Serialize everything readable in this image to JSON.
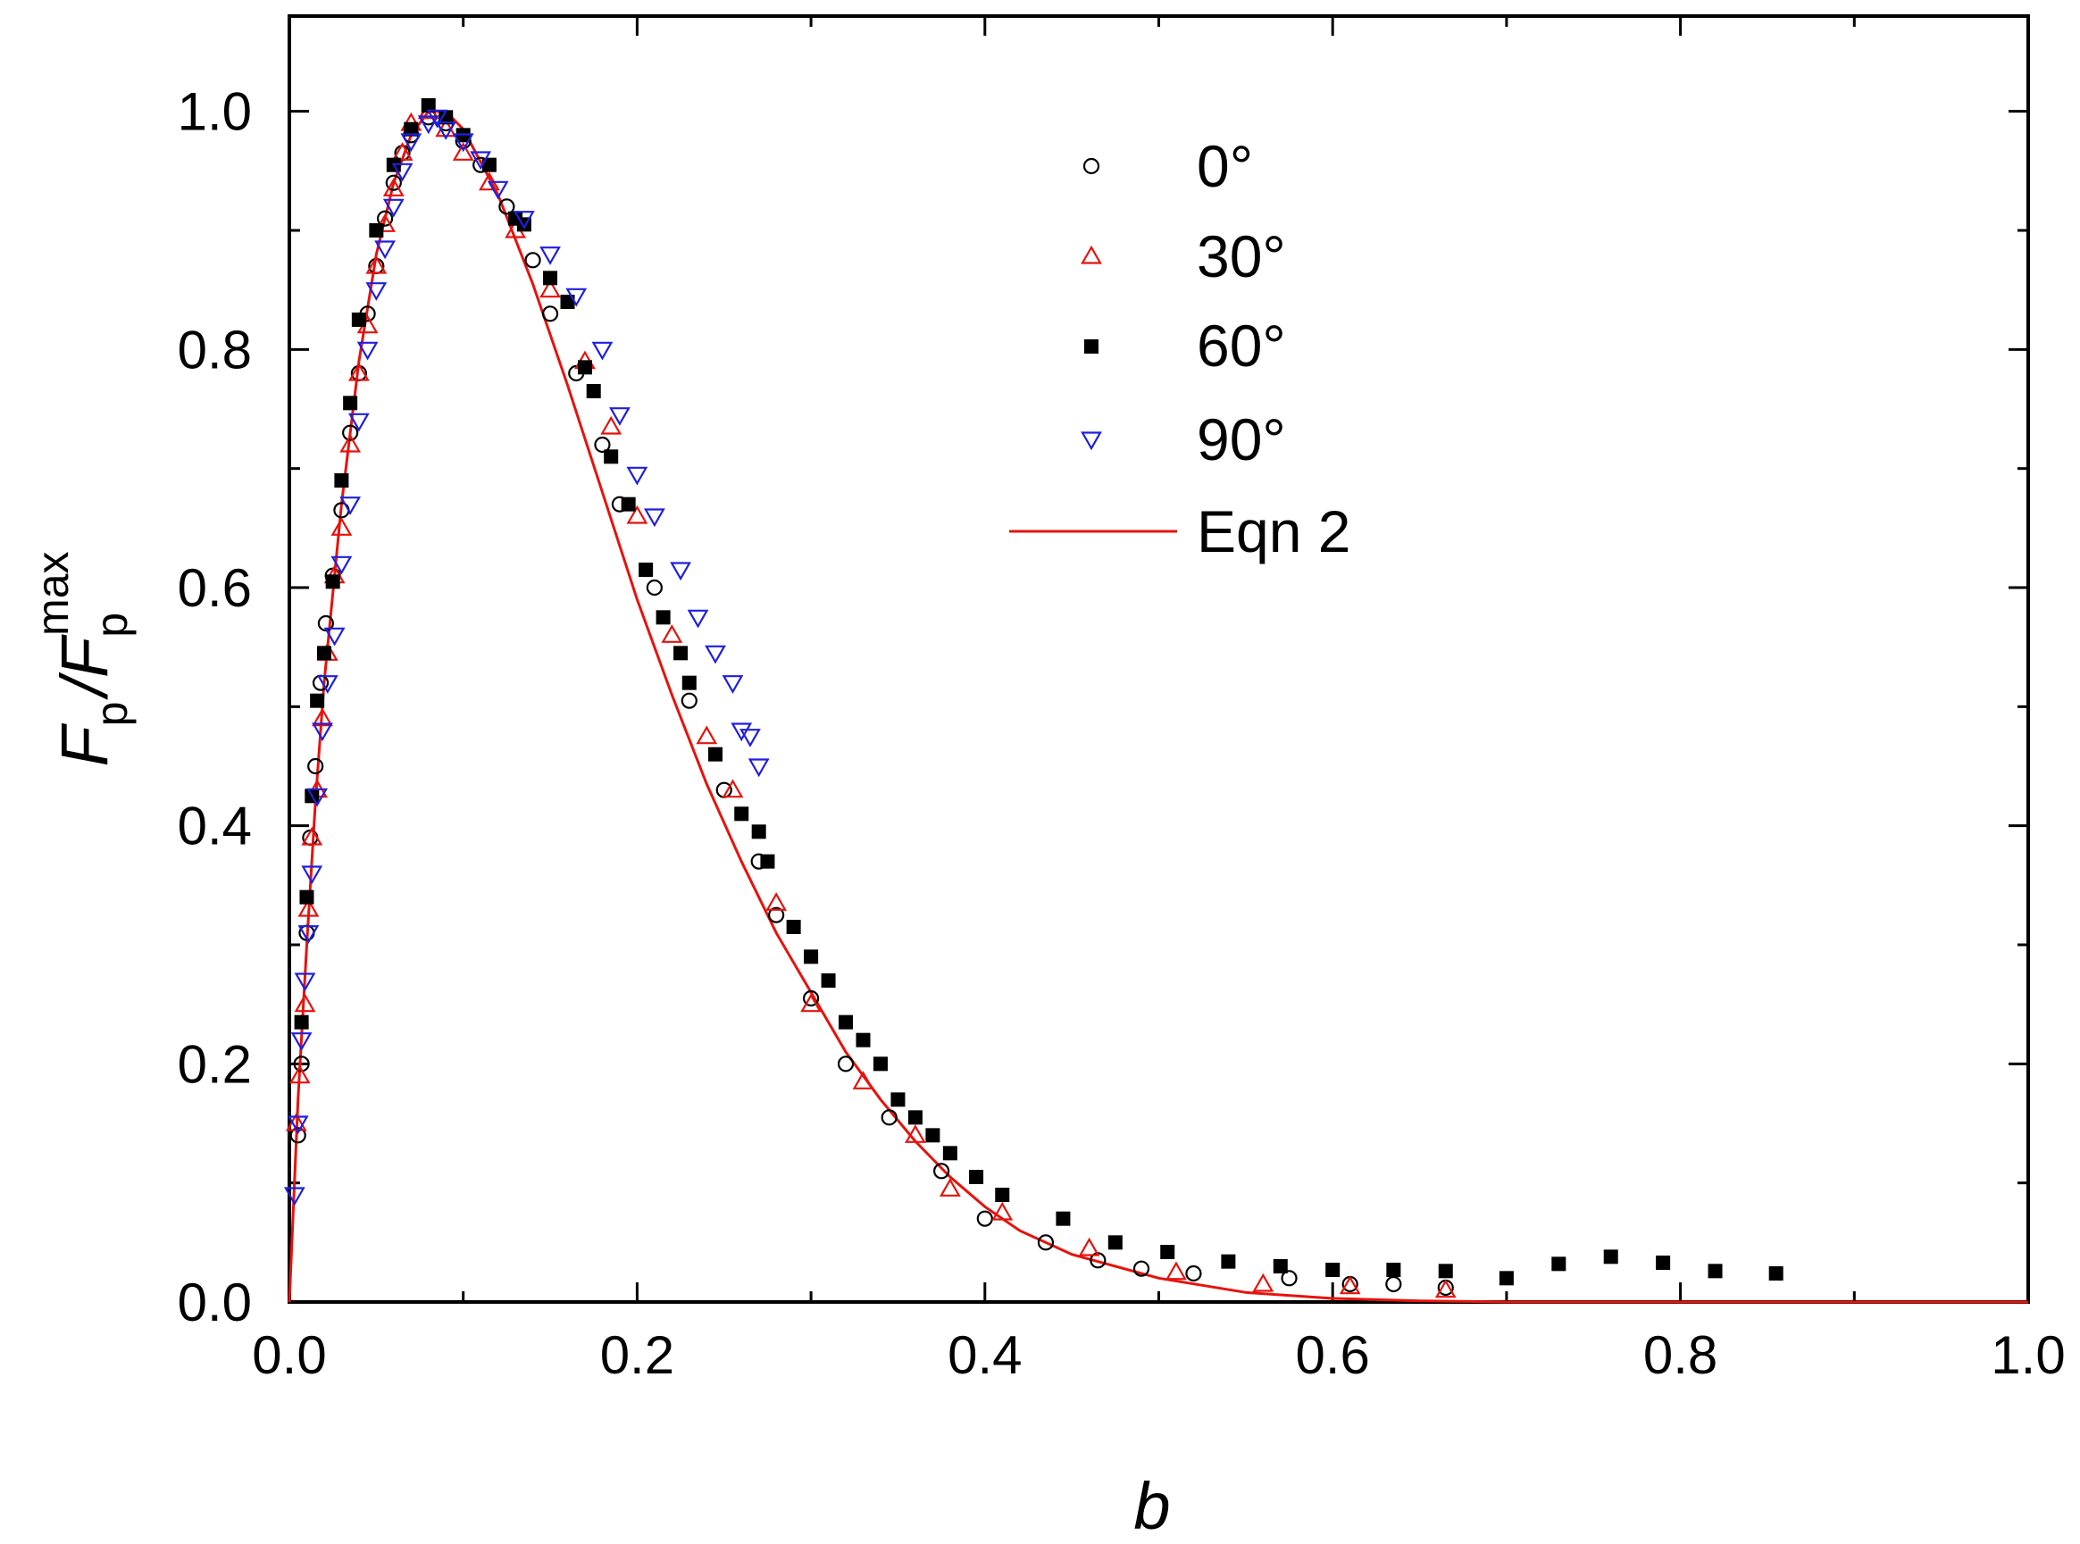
{
  "chart_data": {
    "type": "scatter",
    "xlabel": "b",
    "ylabel": {
      "symbol_1": "F",
      "sub_1": "p",
      "separator": "/",
      "symbol_2": "F",
      "sub_2": "p",
      "sup_2": "max"
    },
    "xlim": [
      0.0,
      1.0
    ],
    "ylim": [
      0.0,
      1.08
    ],
    "x_ticks": [
      "0.0",
      "0.2",
      "0.4",
      "0.6",
      "0.8",
      "1.0"
    ],
    "y_ticks": [
      "0.0",
      "0.2",
      "0.4",
      "0.6",
      "0.8",
      "1.0"
    ],
    "grid": false,
    "legend_position": "top-center",
    "series": [
      {
        "name": "0°",
        "marker": "open-circle",
        "color": "#000000",
        "points": [
          [
            0.005,
            0.14
          ],
          [
            0.007,
            0.2
          ],
          [
            0.01,
            0.31
          ],
          [
            0.012,
            0.39
          ],
          [
            0.015,
            0.45
          ],
          [
            0.018,
            0.52
          ],
          [
            0.021,
            0.57
          ],
          [
            0.025,
            0.61
          ],
          [
            0.03,
            0.665
          ],
          [
            0.035,
            0.73
          ],
          [
            0.04,
            0.78
          ],
          [
            0.045,
            0.83
          ],
          [
            0.05,
            0.87
          ],
          [
            0.055,
            0.91
          ],
          [
            0.06,
            0.94
          ],
          [
            0.065,
            0.965
          ],
          [
            0.07,
            0.98
          ],
          [
            0.08,
            0.995
          ],
          [
            0.09,
            0.99
          ],
          [
            0.1,
            0.975
          ],
          [
            0.11,
            0.955
          ],
          [
            0.125,
            0.92
          ],
          [
            0.14,
            0.875
          ],
          [
            0.15,
            0.83
          ],
          [
            0.165,
            0.78
          ],
          [
            0.18,
            0.72
          ],
          [
            0.19,
            0.67
          ],
          [
            0.21,
            0.6
          ],
          [
            0.23,
            0.505
          ],
          [
            0.25,
            0.43
          ],
          [
            0.27,
            0.37
          ],
          [
            0.28,
            0.325
          ],
          [
            0.3,
            0.255
          ],
          [
            0.32,
            0.2
          ],
          [
            0.345,
            0.155
          ],
          [
            0.375,
            0.11
          ],
          [
            0.4,
            0.07
          ],
          [
            0.435,
            0.05
          ],
          [
            0.465,
            0.035
          ],
          [
            0.49,
            0.028
          ],
          [
            0.52,
            0.024
          ],
          [
            0.575,
            0.02
          ],
          [
            0.61,
            0.015
          ],
          [
            0.635,
            0.015
          ],
          [
            0.665,
            0.012
          ]
        ]
      },
      {
        "name": "30°",
        "marker": "open-triangle-up",
        "color": "#e8120c",
        "points": [
          [
            0.004,
            0.15
          ],
          [
            0.006,
            0.19
          ],
          [
            0.009,
            0.25
          ],
          [
            0.011,
            0.33
          ],
          [
            0.013,
            0.39
          ],
          [
            0.016,
            0.43
          ],
          [
            0.019,
            0.49
          ],
          [
            0.022,
            0.545
          ],
          [
            0.026,
            0.61
          ],
          [
            0.03,
            0.65
          ],
          [
            0.035,
            0.72
          ],
          [
            0.04,
            0.78
          ],
          [
            0.045,
            0.82
          ],
          [
            0.05,
            0.87
          ],
          [
            0.055,
            0.905
          ],
          [
            0.06,
            0.935
          ],
          [
            0.065,
            0.965
          ],
          [
            0.07,
            0.99
          ],
          [
            0.08,
            1.0
          ],
          [
            0.09,
            0.985
          ],
          [
            0.1,
            0.965
          ],
          [
            0.115,
            0.94
          ],
          [
            0.13,
            0.9
          ],
          [
            0.15,
            0.85
          ],
          [
            0.17,
            0.79
          ],
          [
            0.185,
            0.735
          ],
          [
            0.2,
            0.66
          ],
          [
            0.22,
            0.56
          ],
          [
            0.24,
            0.475
          ],
          [
            0.255,
            0.43
          ],
          [
            0.28,
            0.335
          ],
          [
            0.3,
            0.25
          ],
          [
            0.33,
            0.185
          ],
          [
            0.36,
            0.14
          ],
          [
            0.38,
            0.095
          ],
          [
            0.41,
            0.075
          ],
          [
            0.46,
            0.045
          ],
          [
            0.51,
            0.025
          ],
          [
            0.56,
            0.015
          ],
          [
            0.61,
            0.013
          ],
          [
            0.665,
            0.01
          ]
        ]
      },
      {
        "name": "60°",
        "marker": "filled-square",
        "color": "#000000",
        "points": [
          [
            0.007,
            0.235
          ],
          [
            0.01,
            0.34
          ],
          [
            0.013,
            0.425
          ],
          [
            0.016,
            0.505
          ],
          [
            0.02,
            0.545
          ],
          [
            0.025,
            0.605
          ],
          [
            0.03,
            0.69
          ],
          [
            0.035,
            0.755
          ],
          [
            0.04,
            0.825
          ],
          [
            0.05,
            0.9
          ],
          [
            0.06,
            0.955
          ],
          [
            0.07,
            0.985
          ],
          [
            0.08,
            1.005
          ],
          [
            0.09,
            0.995
          ],
          [
            0.1,
            0.98
          ],
          [
            0.115,
            0.955
          ],
          [
            0.13,
            0.91
          ],
          [
            0.135,
            0.905
          ],
          [
            0.15,
            0.86
          ],
          [
            0.16,
            0.84
          ],
          [
            0.17,
            0.785
          ],
          [
            0.175,
            0.765
          ],
          [
            0.185,
            0.71
          ],
          [
            0.195,
            0.67
          ],
          [
            0.205,
            0.615
          ],
          [
            0.215,
            0.575
          ],
          [
            0.225,
            0.545
          ],
          [
            0.23,
            0.52
          ],
          [
            0.245,
            0.46
          ],
          [
            0.26,
            0.41
          ],
          [
            0.27,
            0.395
          ],
          [
            0.275,
            0.37
          ],
          [
            0.29,
            0.315
          ],
          [
            0.3,
            0.29
          ],
          [
            0.31,
            0.27
          ],
          [
            0.32,
            0.235
          ],
          [
            0.33,
            0.22
          ],
          [
            0.34,
            0.2
          ],
          [
            0.35,
            0.17
          ],
          [
            0.36,
            0.155
          ],
          [
            0.37,
            0.14
          ],
          [
            0.38,
            0.125
          ],
          [
            0.395,
            0.105
          ],
          [
            0.41,
            0.09
          ],
          [
            0.445,
            0.07
          ],
          [
            0.475,
            0.05
          ],
          [
            0.505,
            0.042
          ],
          [
            0.54,
            0.034
          ],
          [
            0.57,
            0.03
          ],
          [
            0.6,
            0.027
          ],
          [
            0.635,
            0.027
          ],
          [
            0.665,
            0.026
          ],
          [
            0.7,
            0.02
          ],
          [
            0.73,
            0.032
          ],
          [
            0.76,
            0.038
          ],
          [
            0.79,
            0.033
          ],
          [
            0.82,
            0.026
          ],
          [
            0.855,
            0.024
          ]
        ]
      },
      {
        "name": "90°",
        "marker": "open-triangle-down",
        "color": "#1f1fe0",
        "points": [
          [
            0.003,
            0.09
          ],
          [
            0.005,
            0.15
          ],
          [
            0.007,
            0.22
          ],
          [
            0.009,
            0.27
          ],
          [
            0.011,
            0.31
          ],
          [
            0.013,
            0.36
          ],
          [
            0.016,
            0.425
          ],
          [
            0.019,
            0.48
          ],
          [
            0.022,
            0.52
          ],
          [
            0.026,
            0.56
          ],
          [
            0.03,
            0.62
          ],
          [
            0.035,
            0.67
          ],
          [
            0.04,
            0.74
          ],
          [
            0.045,
            0.8
          ],
          [
            0.05,
            0.85
          ],
          [
            0.055,
            0.885
          ],
          [
            0.06,
            0.92
          ],
          [
            0.065,
            0.95
          ],
          [
            0.07,
            0.975
          ],
          [
            0.08,
            0.99
          ],
          [
            0.085,
            0.995
          ],
          [
            0.09,
            0.985
          ],
          [
            0.1,
            0.975
          ],
          [
            0.11,
            0.96
          ],
          [
            0.12,
            0.935
          ],
          [
            0.135,
            0.91
          ],
          [
            0.15,
            0.88
          ],
          [
            0.165,
            0.845
          ],
          [
            0.18,
            0.8
          ],
          [
            0.19,
            0.745
          ],
          [
            0.2,
            0.695
          ],
          [
            0.21,
            0.66
          ],
          [
            0.225,
            0.615
          ],
          [
            0.235,
            0.575
          ],
          [
            0.245,
            0.545
          ],
          [
            0.255,
            0.52
          ],
          [
            0.26,
            0.48
          ],
          [
            0.265,
            0.475
          ],
          [
            0.27,
            0.45
          ]
        ]
      },
      {
        "name": "Eqn 2",
        "type": "line",
        "color": "#e8120c",
        "x": [
          0.0,
          0.005,
          0.01,
          0.015,
          0.02,
          0.03,
          0.04,
          0.05,
          0.06,
          0.07,
          0.08,
          0.09,
          0.1,
          0.12,
          0.14,
          0.16,
          0.18,
          0.2,
          0.22,
          0.24,
          0.26,
          0.28,
          0.3,
          0.32,
          0.34,
          0.36,
          0.38,
          0.4,
          0.42,
          0.45,
          0.5,
          0.55,
          0.6,
          0.65,
          0.7,
          0.8,
          0.9,
          1.0
        ],
        "y": [
          0.0,
          0.17,
          0.3,
          0.42,
          0.52,
          0.67,
          0.79,
          0.88,
          0.94,
          0.98,
          1.0,
          1.0,
          0.985,
          0.93,
          0.855,
          0.77,
          0.68,
          0.59,
          0.51,
          0.435,
          0.37,
          0.31,
          0.26,
          0.21,
          0.17,
          0.135,
          0.105,
          0.08,
          0.06,
          0.04,
          0.02,
          0.008,
          0.003,
          0.001,
          0.0,
          0.0,
          0.0,
          0.0
        ]
      }
    ]
  }
}
